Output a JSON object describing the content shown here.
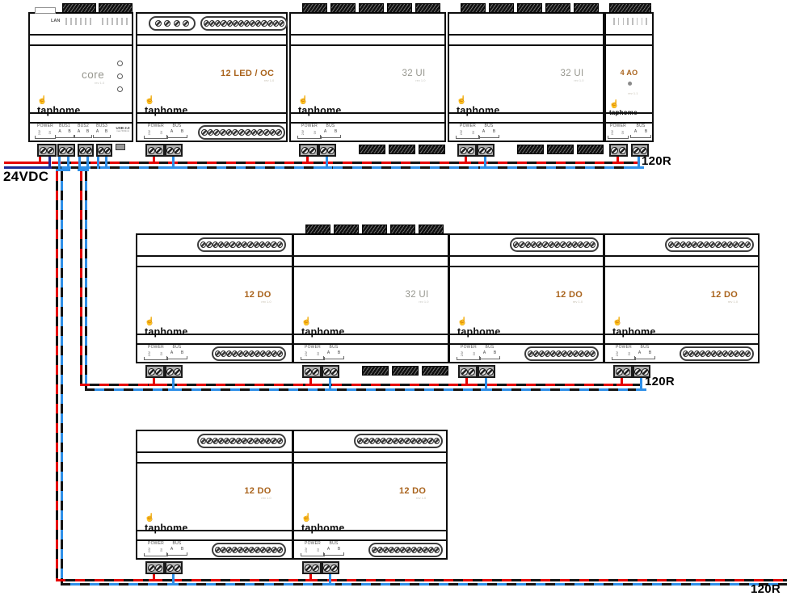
{
  "labels": {
    "power_source": "24VDC",
    "terminator_row1": "120R",
    "terminator_row2": "120R",
    "terminator_row3": "120R"
  },
  "brand": {
    "name": "taphome",
    "icon_glyph": "☝"
  },
  "colors": {
    "wire_red": "#e60000",
    "wire_blue": "#2e8fe8",
    "wire_navy": "#1c2a96",
    "wire_black": "#141414",
    "accent_orange": "#a9631c",
    "label_gray": "#97978f"
  },
  "rows": [
    {
      "name": "row-1",
      "modules": [
        {
          "type": "core",
          "label": "core",
          "rev": "rev 1.0",
          "lan_label": "LAN",
          "usb_label": "USB 2.0",
          "usb_note": "max 500mA",
          "bottom_terminals": [
            {
              "name": "POWER",
              "vertical": true,
              "pins": [
                "24V",
                "0V"
              ]
            },
            {
              "name": "BUS1",
              "pins": [
                "A",
                "B"
              ]
            },
            {
              "name": "BUS2",
              "pins": [
                "A",
                "B"
              ]
            },
            {
              "name": "BUS3",
              "pins": [
                "A",
                "B"
              ]
            }
          ]
        },
        {
          "type": "led12",
          "label": "12 LED / OC",
          "rev": "rev 1.0",
          "bottom_terminals": [
            {
              "name": "POWER",
              "vertical": true,
              "pins": [
                "24V",
                "0V"
              ]
            },
            {
              "name": "BUS",
              "pins": [
                "A",
                "B"
              ]
            }
          ]
        },
        {
          "type": "ui32",
          "label": "32 UI",
          "rev": "rev 1.0",
          "bottom_terminals": [
            {
              "name": "POWER",
              "vertical": true,
              "pins": [
                "24V",
                "0V"
              ]
            },
            {
              "name": "BUS",
              "pins": [
                "A",
                "B"
              ]
            }
          ]
        },
        {
          "type": "ui32",
          "label": "32 UI",
          "rev": "rev 1.0",
          "bottom_terminals": [
            {
              "name": "POWER",
              "vertical": true,
              "pins": [
                "24V",
                "0V"
              ]
            },
            {
              "name": "BUS",
              "pins": [
                "A",
                "B"
              ]
            }
          ]
        },
        {
          "type": "ao4",
          "label": "4 AO",
          "rev": "rev 1.1",
          "bottom_terminals": [
            {
              "name": "POWER",
              "vertical": true,
              "pins": [
                "24V",
                "0V"
              ]
            },
            {
              "name": "BUS",
              "pins": [
                "A",
                "B"
              ]
            }
          ]
        }
      ]
    },
    {
      "name": "row-2",
      "modules": [
        {
          "type": "do12",
          "label": "12 DO",
          "rev": "rev 1.0",
          "bottom_terminals": [
            {
              "name": "POWER",
              "vertical": true,
              "pins": [
                "24V",
                "0V"
              ]
            },
            {
              "name": "BUS",
              "pins": [
                "A",
                "B"
              ]
            }
          ]
        },
        {
          "type": "ui32",
          "label": "32 UI",
          "rev": "rev 1.0",
          "bottom_terminals": [
            {
              "name": "POWER",
              "vertical": true,
              "pins": [
                "24V",
                "0V"
              ]
            },
            {
              "name": "BUS",
              "pins": [
                "A",
                "B"
              ]
            }
          ]
        },
        {
          "type": "do12",
          "label": "12 DO",
          "rev": "rev 1.0",
          "bottom_terminals": [
            {
              "name": "POWER",
              "vertical": true,
              "pins": [
                "24V",
                "0V"
              ]
            },
            {
              "name": "BUS",
              "pins": [
                "A",
                "B"
              ]
            }
          ]
        },
        {
          "type": "do12",
          "label": "12 DO",
          "rev": "rev 1.0",
          "bottom_terminals": [
            {
              "name": "POWER",
              "vertical": true,
              "pins": [
                "24V",
                "0V"
              ]
            },
            {
              "name": "BUS",
              "pins": [
                "A",
                "B"
              ]
            }
          ]
        }
      ]
    },
    {
      "name": "row-3",
      "modules": [
        {
          "type": "do12",
          "label": "12 DO",
          "rev": "rev 1.0",
          "bottom_terminals": [
            {
              "name": "POWER",
              "vertical": true,
              "pins": [
                "24V",
                "0V"
              ]
            },
            {
              "name": "BUS",
              "pins": [
                "A",
                "B"
              ]
            }
          ]
        },
        {
          "type": "do12",
          "label": "12 DO",
          "rev": "rev 1.0",
          "bottom_terminals": [
            {
              "name": "POWER",
              "vertical": true,
              "pins": [
                "24V",
                "0V"
              ]
            },
            {
              "name": "BUS",
              "pins": [
                "A",
                "B"
              ]
            }
          ]
        }
      ]
    }
  ]
}
